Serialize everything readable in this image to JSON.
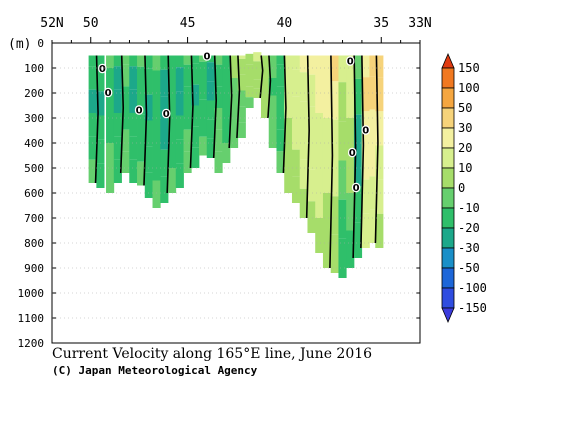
{
  "chart_data": {
    "type": "heatmap",
    "title": "Current Velocity along 165°E line, June 2016",
    "credit": "(C) Japan Meteorological Agency",
    "xlabel": "",
    "ylabel": "(m)",
    "x_ticks": [
      "52N",
      "50",
      "45",
      "40",
      "35",
      "33N"
    ],
    "x_tick_values": [
      52,
      50,
      45,
      40,
      35,
      33
    ],
    "xlim": [
      52,
      33
    ],
    "y_ticks": [
      "0",
      "100",
      "200",
      "300",
      "400",
      "500",
      "600",
      "700",
      "800",
      "900",
      "1000",
      "1100",
      "1200"
    ],
    "y_tick_values": [
      0,
      100,
      200,
      300,
      400,
      500,
      600,
      700,
      800,
      900,
      1000,
      1100,
      1200
    ],
    "ylim": [
      0,
      1200
    ],
    "grid": true,
    "colorbar": {
      "levels": [
        "150",
        "100",
        "50",
        "30",
        "20",
        "10",
        "0",
        "-10",
        "-20",
        "-30",
        "-50",
        "-100",
        "-150"
      ],
      "colors": [
        "#e03a10",
        "#f07820",
        "#f5a640",
        "#f6d37a",
        "#f3f0a0",
        "#d7ef8e",
        "#a6dd6a",
        "#66cf6e",
        "#2fbf6a",
        "#1ca88a",
        "#1a8fc8",
        "#1d66d8",
        "#2f4de0",
        "#3b3bdc"
      ]
    },
    "contour_labels": [
      "0",
      "0",
      "0",
      "0",
      "0",
      "0",
      "0",
      "0",
      "0"
    ],
    "columns": [
      {
        "lat": 49.9,
        "depth": 560,
        "vals": [
          -15,
          -20,
          -25,
          -20,
          -15,
          -10
        ]
      },
      {
        "lat": 49.5,
        "depth": 580,
        "vals": [
          -12,
          -18,
          -22,
          -18,
          -15,
          -12
        ]
      },
      {
        "lat": 49.0,
        "depth": 600,
        "vals": [
          -8,
          -12,
          -15,
          -12,
          -10,
          -8
        ]
      },
      {
        "lat": 48.6,
        "depth": 560,
        "vals": [
          -20,
          -25,
          -22,
          -20,
          -15,
          -12
        ]
      },
      {
        "lat": 48.2,
        "depth": 520,
        "vals": [
          -5,
          -10,
          -15,
          -12,
          -10,
          -8
        ]
      },
      {
        "lat": 47.8,
        "depth": 560,
        "vals": [
          -18,
          -22,
          -25,
          -20,
          -18,
          -15
        ]
      },
      {
        "lat": 47.4,
        "depth": 570,
        "vals": [
          -8,
          -15,
          -18,
          -15,
          -12,
          -10
        ]
      },
      {
        "lat": 47.0,
        "depth": 620,
        "vals": [
          -15,
          -20,
          -22,
          -18,
          -15,
          -12
        ]
      },
      {
        "lat": 46.6,
        "depth": 660,
        "vals": [
          -10,
          -18,
          -20,
          -15,
          -12,
          -10
        ]
      },
      {
        "lat": 46.2,
        "depth": 640,
        "vals": [
          -18,
          -22,
          -25,
          -22,
          -18,
          -15
        ]
      },
      {
        "lat": 45.8,
        "depth": 600,
        "vals": [
          -12,
          -15,
          -18,
          -15,
          -12,
          -10
        ]
      },
      {
        "lat": 45.4,
        "depth": 580,
        "vals": [
          -20,
          -25,
          -22,
          -18,
          -15,
          -12
        ]
      },
      {
        "lat": 45.0,
        "depth": 520,
        "vals": [
          -8,
          -12,
          -15,
          -12,
          -10,
          -8
        ]
      },
      {
        "lat": 44.6,
        "depth": 500,
        "vals": [
          -15,
          -20,
          -22,
          -18,
          -15,
          -12
        ]
      },
      {
        "lat": 44.2,
        "depth": 450,
        "vals": [
          -10,
          -18,
          -20,
          -15,
          -12,
          -10
        ]
      },
      {
        "lat": 43.8,
        "depth": 460,
        "vals": [
          -18,
          -22,
          -25,
          -20,
          -15,
          -12
        ]
      },
      {
        "lat": 43.4,
        "depth": 520,
        "vals": [
          -8,
          -12,
          -15,
          -10,
          -8,
          -5
        ]
      },
      {
        "lat": 43.0,
        "depth": 480,
        "vals": [
          -15,
          -18,
          -20,
          -15,
          -12,
          -10
        ]
      },
      {
        "lat": 42.6,
        "depth": 420,
        "vals": [
          5,
          0,
          -5,
          -8,
          -10,
          -8
        ]
      },
      {
        "lat": 42.2,
        "depth": 380,
        "vals": [
          10,
          5,
          0,
          -5,
          -8,
          -5
        ]
      },
      {
        "lat": 41.8,
        "depth": 260,
        "vals": [
          12,
          8,
          5,
          2,
          0,
          -2
        ]
      },
      {
        "lat": 41.4,
        "depth": 220,
        "vals": [
          15,
          10,
          8,
          5,
          3,
          0
        ]
      },
      {
        "lat": 41.0,
        "depth": 300,
        "vals": [
          10,
          8,
          5,
          3,
          2,
          0
        ]
      },
      {
        "lat": 40.6,
        "depth": 420,
        "vals": [
          -5,
          -10,
          -12,
          -10,
          -8,
          -5
        ]
      },
      {
        "lat": 40.2,
        "depth": 520,
        "vals": [
          -15,
          -20,
          -18,
          -15,
          -12,
          -10
        ]
      },
      {
        "lat": 39.8,
        "depth": 600,
        "vals": [
          15,
          12,
          10,
          8,
          5,
          3
        ]
      },
      {
        "lat": 39.4,
        "depth": 640,
        "vals": [
          18,
          15,
          12,
          10,
          8,
          5
        ]
      },
      {
        "lat": 39.0,
        "depth": 700,
        "vals": [
          20,
          18,
          15,
          12,
          10,
          8
        ]
      },
      {
        "lat": 38.6,
        "depth": 760,
        "vals": [
          22,
          18,
          15,
          12,
          10,
          8
        ]
      },
      {
        "lat": 38.2,
        "depth": 840,
        "vals": [
          25,
          20,
          15,
          12,
          10,
          5
        ]
      },
      {
        "lat": 37.8,
        "depth": 900,
        "vals": [
          28,
          22,
          18,
          12,
          8,
          5
        ]
      },
      {
        "lat": 37.4,
        "depth": 920,
        "vals": [
          30,
          25,
          18,
          10,
          5,
          0
        ]
      },
      {
        "lat": 37.0,
        "depth": 940,
        "vals": [
          12,
          5,
          0,
          -8,
          -15,
          -20
        ]
      },
      {
        "lat": 36.6,
        "depth": 900,
        "vals": [
          18,
          10,
          5,
          0,
          -10,
          -15
        ]
      },
      {
        "lat": 36.2,
        "depth": 860,
        "vals": [
          -5,
          -15,
          -25,
          -22,
          -18,
          -15
        ]
      },
      {
        "lat": 35.8,
        "depth": 820,
        "vals": [
          25,
          30,
          25,
          20,
          15,
          10
        ]
      },
      {
        "lat": 35.4,
        "depth": 800,
        "vals": [
          35,
          30,
          25,
          20,
          15,
          10
        ]
      },
      {
        "lat": 35.1,
        "depth": 820,
        "vals": [
          40,
          30,
          25,
          18,
          12,
          8
        ]
      }
    ]
  }
}
